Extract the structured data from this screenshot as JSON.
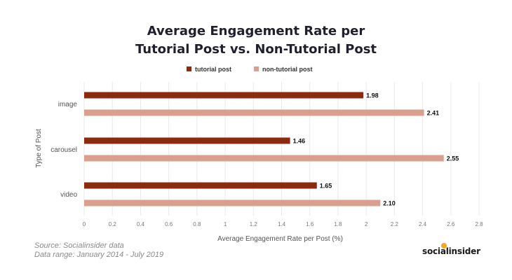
{
  "title_line1": "Average Engagement Rate per",
  "title_line2": "Tutorial Post vs. Non-Tutorial Post",
  "source_text": "Source: Socialinsider data",
  "range_text": "Data range: January 2014 - July 2019",
  "brand": "socialinsider",
  "colors": {
    "tutorial": "#8b2a0f",
    "non_tutorial": "#d9a08f",
    "grid": "#e9e9e9",
    "brand_accent": "#f5a623"
  },
  "chart_data": {
    "type": "bar",
    "orientation": "horizontal",
    "categories": [
      "image",
      "carousel",
      "video"
    ],
    "series": [
      {
        "name": "tutorial post",
        "values": [
          1.98,
          1.46,
          1.65
        ]
      },
      {
        "name": "non-tutorial post",
        "values": [
          2.41,
          2.55,
          2.1
        ]
      }
    ],
    "data_labels": [
      [
        "1.98",
        "1.46",
        "1.65"
      ],
      [
        "2.41",
        "2.55",
        "2.10"
      ]
    ],
    "xlabel": "Average Engagement Rate per Post (%)",
    "ylabel": "Type of Post",
    "xlim": [
      0,
      2.8
    ],
    "xticks": [
      "0",
      "0.2",
      "0.4",
      "0.6",
      "0.8",
      "1",
      "1.2",
      "1.4",
      "1.6",
      "1.8",
      "2",
      "2.2",
      "2.4",
      "2.6",
      "2.8"
    ],
    "grid": true,
    "legend_position": "top-center"
  }
}
